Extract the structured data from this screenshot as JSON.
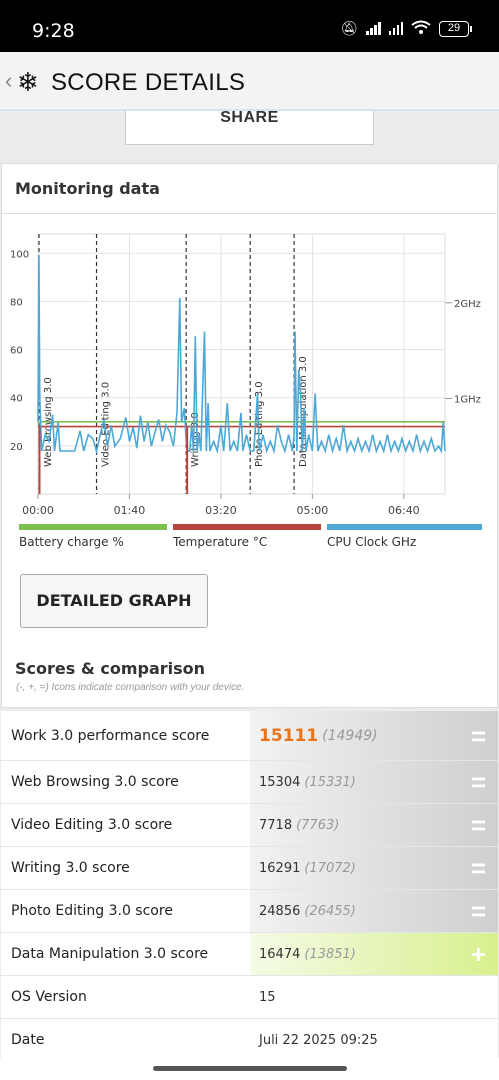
{
  "status": {
    "time": "9:28",
    "battery": "29"
  },
  "header": {
    "back_icon": "chevron-left",
    "logo_icon": "snowflake",
    "title": "SCORE DETAILS"
  },
  "share_label": "SHARE",
  "monitoring": {
    "title": "Monitoring data",
    "detailed_graph_label": "DETAILED GRAPH"
  },
  "chart_data": {
    "type": "line",
    "x_tick_labels": [
      "00:00",
      "01:40",
      "03:20",
      "05:00",
      "06:40"
    ],
    "x_ticks_seconds": [
      0,
      100,
      200,
      300,
      400
    ],
    "x_range_seconds": [
      0,
      445
    ],
    "y_left_ticks": [
      20,
      40,
      60,
      80,
      100
    ],
    "y_left_range": [
      0,
      108
    ],
    "y_right_labels": [
      {
        "label": "1GHz",
        "value": 1
      },
      {
        "label": "2GHz",
        "value": 2
      }
    ],
    "y_right_range_ghz": [
      0,
      2.72
    ],
    "grid": true,
    "markers": [
      {
        "label": "Web Browsing 3.0",
        "x": 0
      },
      {
        "label": "Video Editing 3.0",
        "x": 64
      },
      {
        "label": "Writing 3.0",
        "x": 162
      },
      {
        "label": "Photo Editing 3.0",
        "x": 232
      },
      {
        "label": "Data Manipulation 3.0",
        "x": 280
      }
    ],
    "series": [
      {
        "name": "Battery charge %",
        "color": "#7ec050",
        "points": [
          [
            0,
            30
          ],
          [
            445,
            30
          ]
        ]
      },
      {
        "name": "Temperature °C",
        "color": "#b8453d",
        "points": [
          [
            0,
            28
          ],
          [
            445,
            28
          ]
        ]
      },
      {
        "name": "CPU Clock GHz",
        "color": "#4ea8d6",
        "points": [
          [
            0,
            0.75
          ],
          [
            1,
            2.5
          ],
          [
            2,
            1.0
          ],
          [
            4,
            0.45
          ],
          [
            8,
            0.62
          ],
          [
            12,
            0.55
          ],
          [
            16,
            0.83
          ],
          [
            18,
            0.45
          ],
          [
            22,
            0.75
          ],
          [
            24,
            0.45
          ],
          [
            30,
            0.45
          ],
          [
            40,
            0.45
          ],
          [
            46,
            0.66
          ],
          [
            50,
            0.45
          ],
          [
            55,
            0.62
          ],
          [
            60,
            0.58
          ],
          [
            64,
            0.45
          ],
          [
            68,
            0.62
          ],
          [
            72,
            0.78
          ],
          [
            76,
            0.5
          ],
          [
            80,
            0.72
          ],
          [
            84,
            0.5
          ],
          [
            90,
            0.58
          ],
          [
            96,
            0.8
          ],
          [
            100,
            0.55
          ],
          [
            104,
            0.7
          ],
          [
            108,
            0.48
          ],
          [
            112,
            0.82
          ],
          [
            116,
            0.55
          ],
          [
            120,
            0.75
          ],
          [
            124,
            0.5
          ],
          [
            128,
            0.65
          ],
          [
            132,
            0.78
          ],
          [
            136,
            0.55
          ],
          [
            140,
            0.72
          ],
          [
            144,
            0.65
          ],
          [
            148,
            0.5
          ],
          [
            152,
            0.85
          ],
          [
            155,
            2.05
          ],
          [
            157,
            0.75
          ],
          [
            160,
            0.9
          ],
          [
            162,
            0.55
          ],
          [
            164,
            0.45
          ],
          [
            166,
            0.45
          ],
          [
            168,
            0.72
          ],
          [
            170,
            0.45
          ],
          [
            172,
            1.65
          ],
          [
            174,
            0.45
          ],
          [
            176,
            0.62
          ],
          [
            178,
            0.45
          ],
          [
            182,
            1.7
          ],
          [
            184,
            0.45
          ],
          [
            186,
            0.95
          ],
          [
            188,
            0.45
          ],
          [
            192,
            0.55
          ],
          [
            196,
            0.45
          ],
          [
            200,
            0.72
          ],
          [
            203,
            0.45
          ],
          [
            207,
            0.95
          ],
          [
            210,
            0.45
          ],
          [
            214,
            0.55
          ],
          [
            218,
            0.45
          ],
          [
            222,
            0.85
          ],
          [
            224,
            0.45
          ],
          [
            228,
            0.62
          ],
          [
            232,
            0.45
          ],
          [
            236,
            0.45
          ],
          [
            240,
            1.05
          ],
          [
            242,
            0.45
          ],
          [
            246,
            0.62
          ],
          [
            250,
            0.45
          ],
          [
            254,
            0.55
          ],
          [
            258,
            0.45
          ],
          [
            262,
            0.72
          ],
          [
            266,
            0.55
          ],
          [
            270,
            0.45
          ],
          [
            274,
            0.62
          ],
          [
            278,
            0.45
          ],
          [
            280,
            0.62
          ],
          [
            281,
            1.7
          ],
          [
            283,
            0.45
          ],
          [
            285,
            1.3
          ],
          [
            287,
            1.05
          ],
          [
            289,
            0.45
          ],
          [
            291,
            0.9
          ],
          [
            293,
            0.45
          ],
          [
            296,
            0.62
          ],
          [
            300,
            0.45
          ],
          [
            303,
            1.05
          ],
          [
            306,
            0.45
          ],
          [
            310,
            0.55
          ],
          [
            314,
            0.45
          ],
          [
            318,
            0.62
          ],
          [
            322,
            0.45
          ],
          [
            326,
            0.58
          ],
          [
            330,
            0.45
          ],
          [
            334,
            0.72
          ],
          [
            338,
            0.45
          ],
          [
            342,
            0.55
          ],
          [
            346,
            0.45
          ],
          [
            350,
            0.58
          ],
          [
            354,
            0.45
          ],
          [
            358,
            0.55
          ],
          [
            362,
            0.45
          ],
          [
            366,
            0.62
          ],
          [
            370,
            0.45
          ],
          [
            374,
            0.55
          ],
          [
            378,
            0.45
          ],
          [
            382,
            0.62
          ],
          [
            386,
            0.45
          ],
          [
            390,
            0.55
          ],
          [
            394,
            0.45
          ],
          [
            398,
            0.58
          ],
          [
            402,
            0.45
          ],
          [
            406,
            0.55
          ],
          [
            410,
            0.45
          ],
          [
            414,
            0.62
          ],
          [
            418,
            0.45
          ],
          [
            422,
            0.55
          ],
          [
            426,
            0.45
          ],
          [
            430,
            0.58
          ],
          [
            434,
            0.45
          ],
          [
            438,
            0.5
          ],
          [
            441,
            0.45
          ],
          [
            443,
            0.75
          ],
          [
            445,
            0.45
          ]
        ]
      }
    ]
  },
  "legend": [
    {
      "label": "Battery charge %",
      "color": "#7ec050"
    },
    {
      "label": "Temperature °C",
      "color": "#b8453d"
    },
    {
      "label": "CPU Clock GHz",
      "color": "#4ea8d6"
    }
  ],
  "scores": {
    "title": "Scores & comparison",
    "note": "(-, +, =) Icons indicate comparison with your device.",
    "rows": [
      {
        "name": "Work 3.0 performance score",
        "value": "15111",
        "compare": "(14949)",
        "symbol": "=",
        "style": "grey",
        "highlight": true
      },
      {
        "name": "Web Browsing 3.0 score",
        "value": "15304",
        "compare": "(15331)",
        "symbol": "=",
        "style": "grey"
      },
      {
        "name": "Video Editing 3.0 score",
        "value": "7718",
        "compare": "(7763)",
        "symbol": "=",
        "style": "grey"
      },
      {
        "name": "Writing 3.0 score",
        "value": "16291",
        "compare": "(17072)",
        "symbol": "=",
        "style": "grey"
      },
      {
        "name": "Photo Editing 3.0 score",
        "value": "24856",
        "compare": "(26455)",
        "symbol": "=",
        "style": "grey"
      },
      {
        "name": "Data Manipulation 3.0 score",
        "value": "16474",
        "compare": "(13851)",
        "symbol": "+",
        "style": "green"
      },
      {
        "name": "OS Version",
        "value": "15",
        "compare": "",
        "symbol": "",
        "style": "plain"
      },
      {
        "name": "Date",
        "value": "Juli 22 2025 09:25",
        "compare": "",
        "symbol": "",
        "style": "plain"
      }
    ]
  }
}
